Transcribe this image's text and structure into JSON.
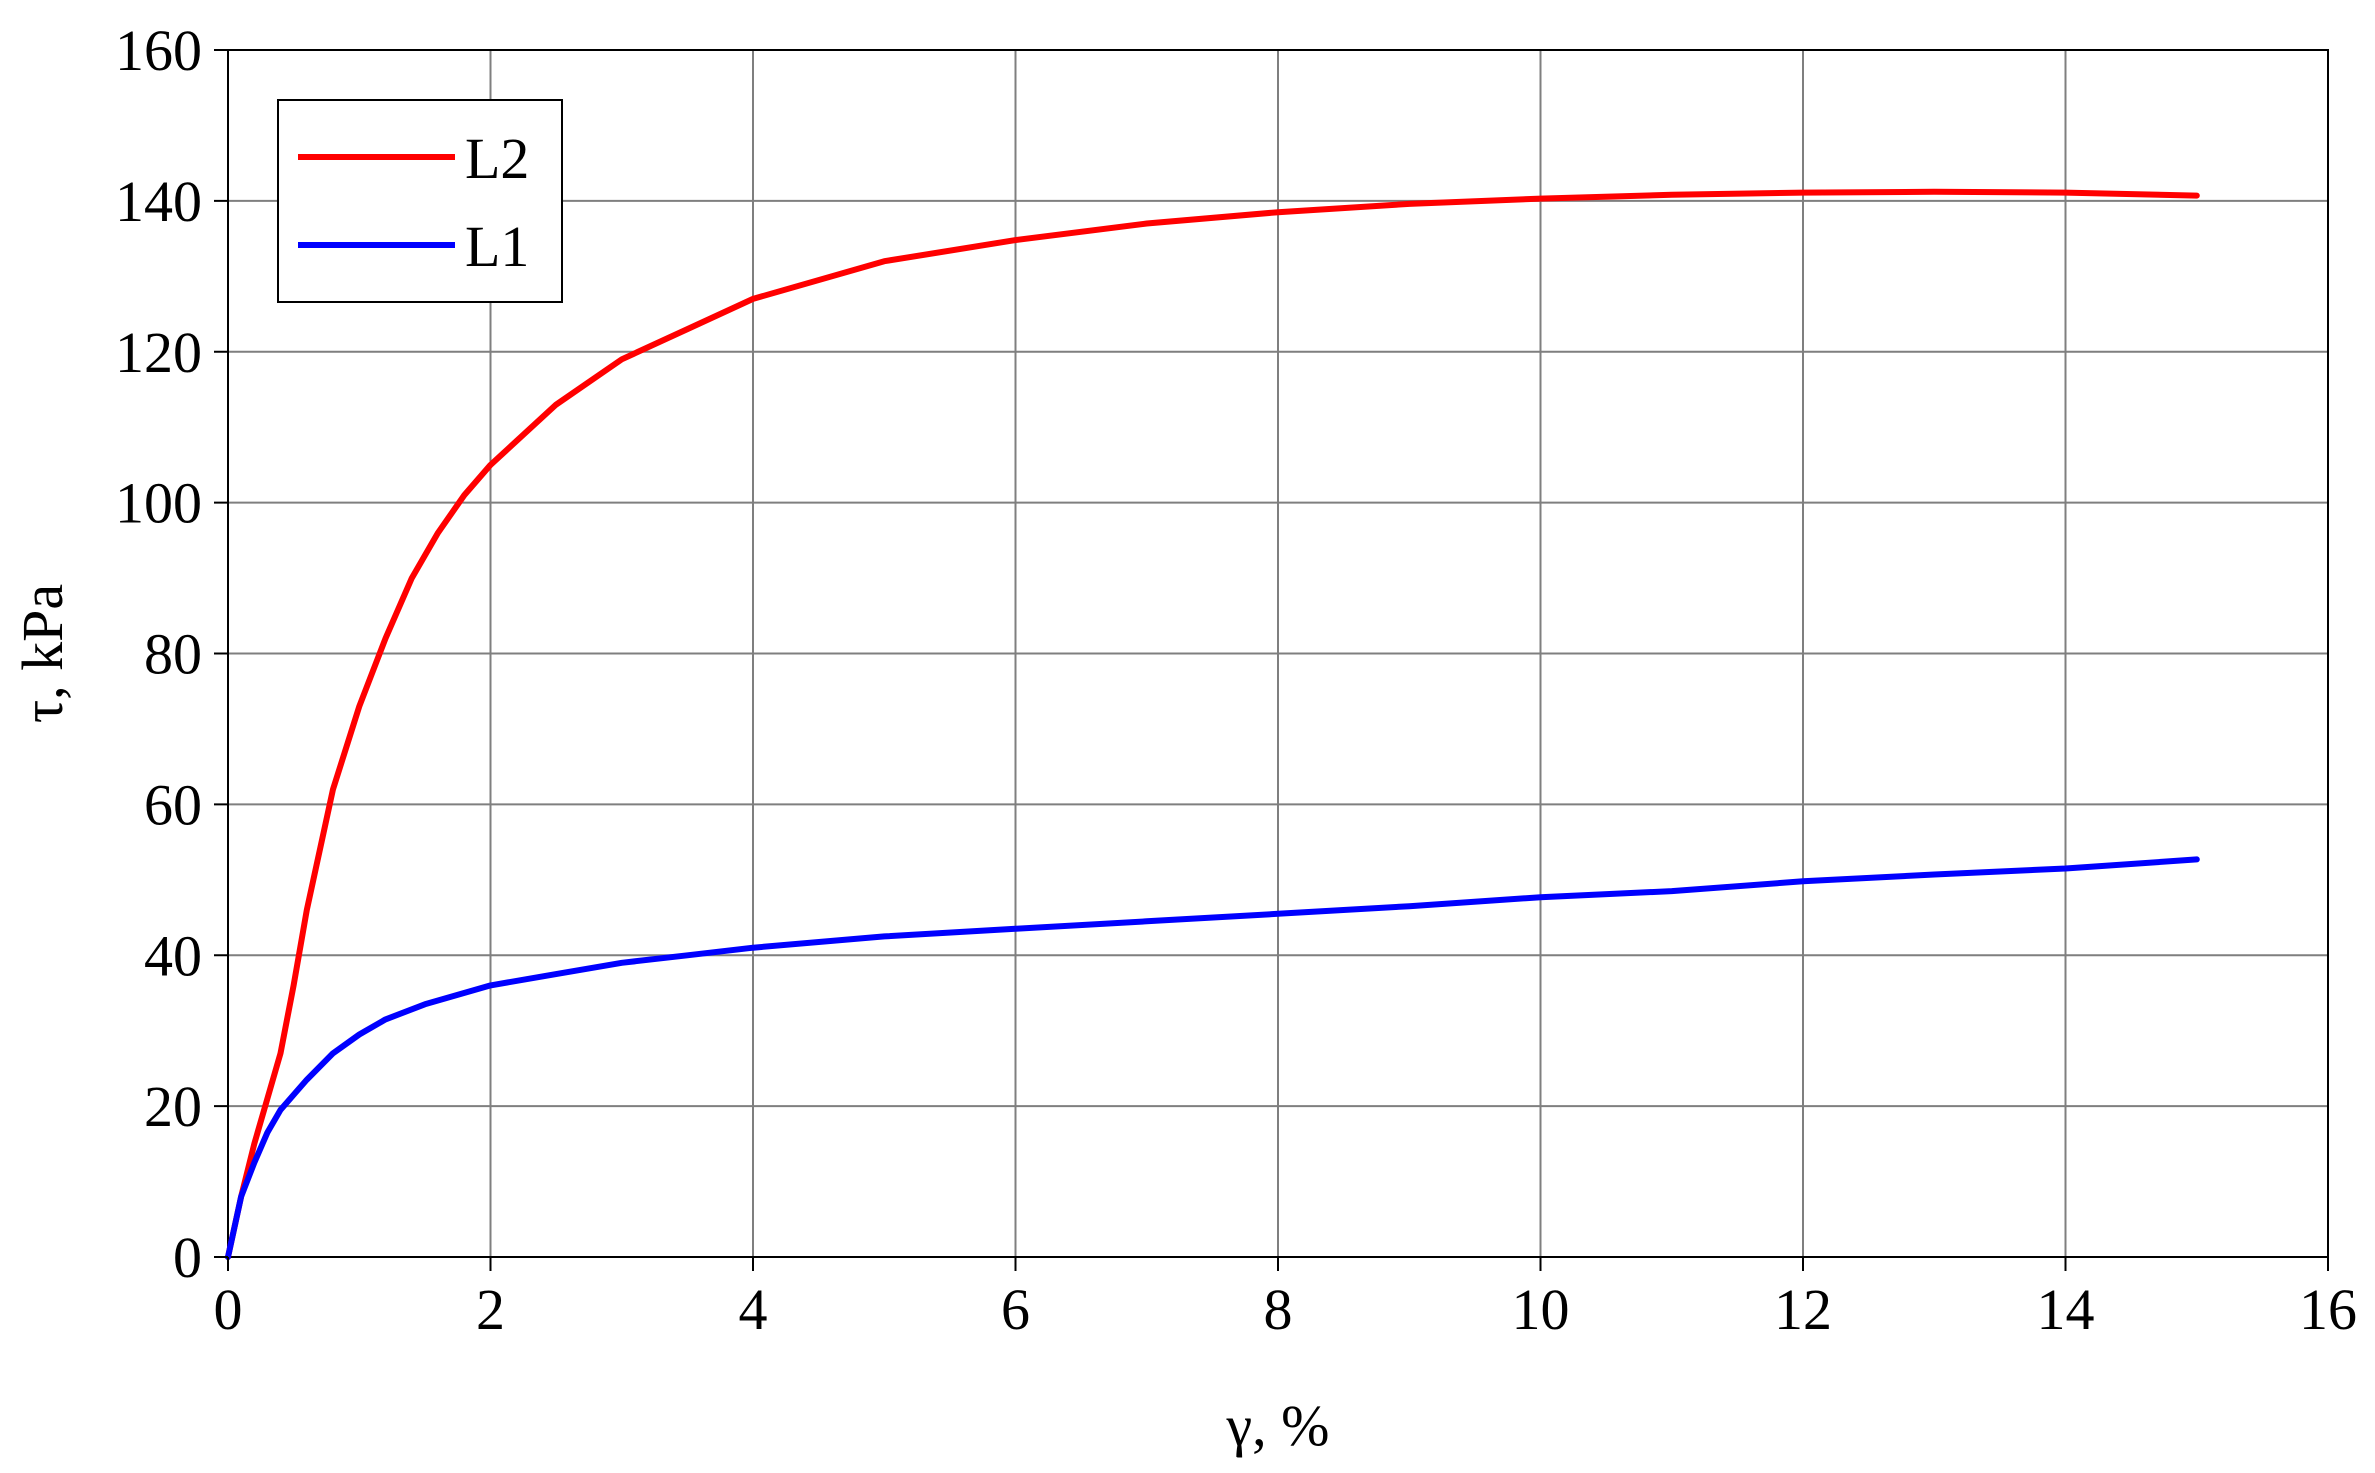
{
  "chart_data": {
    "type": "line",
    "title": "",
    "xlabel": "γ, %",
    "ylabel": "τ, kPa",
    "xlim": [
      0,
      16
    ],
    "ylim": [
      0,
      160
    ],
    "xticks": [
      0,
      2,
      4,
      6,
      8,
      10,
      12,
      14,
      16
    ],
    "yticks": [
      0,
      20,
      40,
      60,
      80,
      100,
      120,
      140,
      160
    ],
    "grid": true,
    "legend_position": "top-left",
    "series": [
      {
        "name": "L2",
        "color": "#ff0000",
        "x": [
          0,
          0.1,
          0.2,
          0.3,
          0.4,
          0.5,
          0.6,
          0.7,
          0.8,
          1.0,
          1.2,
          1.4,
          1.6,
          1.8,
          2.0,
          2.5,
          3.0,
          3.5,
          4.0,
          5.0,
          6.0,
          7.0,
          8.0,
          9.0,
          10.0,
          11.0,
          12.0,
          13.0,
          14.0,
          15.0
        ],
        "y": [
          0,
          8,
          15,
          21,
          27,
          36,
          46,
          54,
          62,
          73,
          82,
          90,
          96,
          101,
          105,
          113,
          119,
          123,
          127,
          132,
          134.8,
          137,
          138.5,
          139.6,
          140.3,
          140.8,
          141.1,
          141.2,
          141.1,
          140.7
        ]
      },
      {
        "name": "L1",
        "color": "#0000ff",
        "x": [
          0,
          0.1,
          0.2,
          0.3,
          0.4,
          0.5,
          0.6,
          0.8,
          1.0,
          1.2,
          1.5,
          2.0,
          2.5,
          3.0,
          3.5,
          4.0,
          5.0,
          6.0,
          7.0,
          8.0,
          9.0,
          10.0,
          11.0,
          12.0,
          13.0,
          14.0,
          15.0
        ],
        "y": [
          0,
          8,
          12.5,
          16.5,
          19.5,
          21.5,
          23.5,
          27,
          29.5,
          31.5,
          33.5,
          36,
          37.5,
          39,
          40,
          41,
          42.5,
          43.5,
          44.5,
          45.5,
          46.5,
          47.7,
          48.5,
          49.8,
          50.7,
          51.5,
          52.7
        ]
      }
    ]
  }
}
